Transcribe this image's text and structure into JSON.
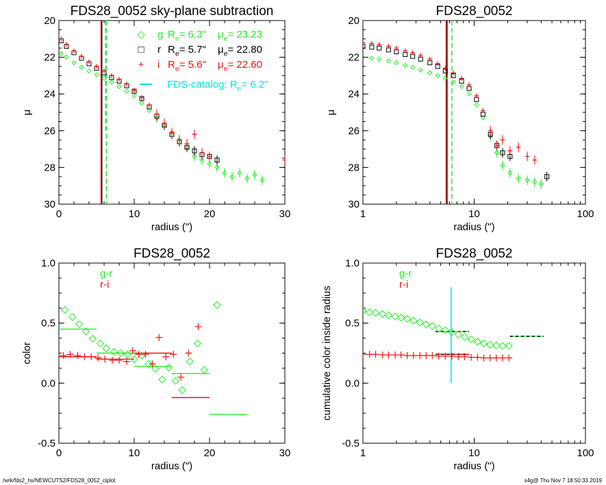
{
  "footer": {
    "path": "/wrk/fds2_hs/NEWCUTS2/FDS28_0052_ciplot",
    "stamp": "s4g@  Thu Nov  7 18:50:33 2019"
  },
  "colors": {
    "g": "#22ee22",
    "r": "#000000",
    "i": "#ee1111",
    "catalog": "#00e5e5"
  },
  "chart_data": [
    {
      "type": "scatter",
      "title": "FDS28_0052 sky-plane subtraction",
      "xlabel": "radius (\")",
      "ylabel": "μ",
      "xlim": [
        0,
        30
      ],
      "ylim": [
        30,
        20
      ],
      "xticks": [
        "0",
        "10",
        "20",
        "30"
      ],
      "yticks": [
        "20",
        "22",
        "24",
        "26",
        "28",
        "30"
      ],
      "legend": [
        {
          "symbol": "◇",
          "band": "g",
          "re_label": "R",
          "re_sub": "e",
          "re_value": "6.3\"",
          "mu_label": "μ",
          "mu_sub": "e",
          "mu_value": "23.23",
          "color": "#22ee22"
        },
        {
          "symbol": "□",
          "band": "r",
          "re_label": "R",
          "re_sub": "e",
          "re_value": "5.7\"",
          "mu_label": "μ",
          "mu_sub": "e",
          "mu_value": "22.80",
          "color": "#000000"
        },
        {
          "symbol": "+",
          "band": "i",
          "re_label": "R",
          "re_sub": "e",
          "re_value": "5.6\"",
          "mu_label": "μ",
          "mu_sub": "e",
          "mu_value": "22.60",
          "color": "#ee1111"
        }
      ],
      "catalog_label": "FDS-catalog: R",
      "catalog_sub": "e",
      "catalog_value": "6.2\"",
      "vlines": [
        {
          "x": 5.7,
          "color": "#000000",
          "style": "solid"
        },
        {
          "x": 5.6,
          "color": "#ee1111",
          "style": "solid"
        },
        {
          "x": 6.3,
          "color": "#22ee22",
          "style": "dashed"
        },
        {
          "x": 6.2,
          "color": "#00e5e5",
          "style": "dashed",
          "ymin": 26.0
        }
      ],
      "series": [
        {
          "name": "g",
          "marker": "diamond",
          "x": [
            0.3,
            1,
            2,
            3,
            4,
            5,
            6,
            7,
            8,
            9,
            10,
            11,
            12,
            13,
            14,
            15,
            16,
            17,
            18,
            19,
            20,
            21,
            22,
            23,
            24,
            25,
            26,
            27
          ],
          "y": [
            21.8,
            22.0,
            22.3,
            22.55,
            22.75,
            22.95,
            23.15,
            23.35,
            23.6,
            23.85,
            24.1,
            24.5,
            24.9,
            25.3,
            25.7,
            26.1,
            26.5,
            26.9,
            27.4,
            27.6,
            27.8,
            28.0,
            28.3,
            28.5,
            28.3,
            28.6,
            28.4,
            28.7
          ]
        },
        {
          "name": "r",
          "marker": "square",
          "x": [
            0.3,
            1,
            2,
            3,
            4,
            5,
            6,
            7,
            8,
            9,
            10,
            11,
            12,
            13,
            14,
            15,
            16,
            17,
            18,
            19,
            20,
            21
          ],
          "y": [
            21.1,
            21.4,
            21.75,
            22.05,
            22.35,
            22.6,
            22.85,
            23.1,
            23.3,
            23.55,
            23.85,
            24.25,
            24.7,
            25.2,
            25.7,
            26.2,
            26.6,
            26.9,
            27.1,
            27.3,
            27.4,
            27.6
          ]
        },
        {
          "name": "i",
          "marker": "plus",
          "x": [
            0.3,
            1,
            2,
            3,
            4,
            5,
            6,
            7,
            8,
            9,
            10,
            11,
            12,
            13,
            14,
            15,
            16,
            17,
            18,
            19,
            20,
            30
          ],
          "y": [
            21.0,
            21.3,
            21.65,
            21.95,
            22.25,
            22.5,
            22.75,
            23.0,
            23.2,
            23.45,
            23.8,
            24.2,
            24.6,
            25.1,
            25.6,
            26.1,
            26.5,
            26.7,
            26.2,
            27.2,
            27.4,
            27.6
          ]
        }
      ]
    },
    {
      "type": "scatter",
      "title": "FDS28_0052",
      "xlabel": "radius (\")",
      "ylabel": "μ",
      "xscale": "log",
      "xlim": [
        1,
        100
      ],
      "ylim": [
        30,
        20
      ],
      "xticks": [
        "1",
        "10",
        "100"
      ],
      "yticks": [
        "20",
        "22",
        "24",
        "26",
        "28",
        "30"
      ],
      "vlines": [
        {
          "x": 5.7,
          "color": "#000000",
          "style": "solid"
        },
        {
          "x": 5.6,
          "color": "#ee1111",
          "style": "solid"
        },
        {
          "x": 6.3,
          "color": "#22ee22",
          "style": "dashed"
        }
      ],
      "series": [
        {
          "name": "g",
          "marker": "diamond",
          "x": [
            1,
            1.2,
            1.4,
            1.7,
            2,
            2.4,
            2.8,
            3.3,
            4,
            4.7,
            5.5,
            6.5,
            7.7,
            9,
            10.5,
            12,
            14,
            16,
            18,
            21,
            25,
            30,
            35,
            40
          ],
          "y": [
            22.0,
            22.05,
            22.1,
            22.2,
            22.3,
            22.45,
            22.55,
            22.7,
            22.85,
            23.0,
            23.15,
            23.35,
            23.6,
            24.0,
            24.6,
            25.3,
            26.3,
            27.2,
            27.9,
            28.3,
            28.6,
            28.7,
            28.8,
            28.9
          ]
        },
        {
          "name": "r",
          "marker": "square",
          "x": [
            1,
            1.2,
            1.4,
            1.7,
            2,
            2.4,
            2.8,
            3.3,
            4,
            4.7,
            5.5,
            6.5,
            7.7,
            9,
            10.5,
            12,
            14,
            16,
            18,
            21,
            45
          ],
          "y": [
            21.4,
            21.45,
            21.5,
            21.6,
            21.7,
            21.85,
            21.95,
            22.1,
            22.3,
            22.5,
            22.75,
            23.0,
            23.3,
            23.7,
            24.3,
            25.1,
            26.2,
            26.8,
            27.2,
            27.4,
            28.5
          ]
        },
        {
          "name": "i",
          "marker": "plus",
          "x": [
            1,
            1.2,
            1.4,
            1.7,
            2,
            2.4,
            2.8,
            3.3,
            4,
            4.7,
            5.5,
            6.5,
            7.7,
            9,
            10.5,
            12,
            14,
            16,
            18,
            21,
            25,
            30,
            35
          ],
          "y": [
            21.2,
            21.25,
            21.3,
            21.4,
            21.5,
            21.65,
            21.75,
            21.9,
            22.1,
            22.35,
            22.6,
            22.85,
            23.15,
            23.5,
            24.1,
            24.9,
            26.0,
            26.8,
            26.5,
            27.1,
            26.9,
            27.4,
            27.6
          ]
        }
      ]
    },
    {
      "type": "scatter",
      "title": "FDS28_0052",
      "xlabel": "radius (\")",
      "ylabel": "color",
      "xlim": [
        0,
        30
      ],
      "ylim": [
        -0.5,
        1.0
      ],
      "xticks": [
        "0",
        "10",
        "20",
        "30"
      ],
      "yticks": [
        "-0.5",
        "0.0",
        "0.5",
        "1.0"
      ],
      "legend": [
        {
          "label": "g-r",
          "color": "#22ee22"
        },
        {
          "label": "r-i",
          "color": "#ee1111"
        }
      ],
      "series": [
        {
          "name": "g-r",
          "marker": "diamond",
          "x": [
            0.8,
            1.8,
            2.7,
            3.6,
            4.5,
            5.5,
            6.3,
            7.3,
            8.2,
            9.1,
            10.0,
            11.0,
            11.9,
            12.8,
            13.7,
            14.6,
            15.5,
            16.4,
            17.4,
            18.4,
            19.3,
            21.0
          ],
          "y": [
            0.61,
            0.55,
            0.49,
            0.43,
            0.37,
            0.33,
            0.29,
            0.26,
            0.25,
            0.24,
            0.2,
            0.23,
            0.16,
            0.12,
            0.03,
            0.13,
            0.02,
            -0.06,
            0.18,
            0.33,
            0.11,
            0.65
          ]
        },
        {
          "name": "r-i",
          "marker": "plus",
          "x": [
            0.6,
            1.5,
            2.5,
            3.4,
            4.3,
            5.2,
            6.1,
            7.1,
            8.0,
            9.0,
            9.8,
            10.6,
            11.5,
            12.4,
            13.3,
            14.2,
            15.2,
            16.2,
            17.2,
            18.5
          ],
          "y": [
            0.23,
            0.24,
            0.23,
            0.22,
            0.22,
            0.21,
            0.2,
            0.19,
            0.19,
            0.18,
            0.27,
            0.24,
            0.24,
            0.16,
            0.38,
            0.22,
            0.24,
            0.05,
            0.25,
            0.47
          ]
        }
      ],
      "segments": [
        {
          "series": "g-r",
          "x0": 0,
          "x1": 5,
          "y": 0.45
        },
        {
          "series": "g-r",
          "x0": 5,
          "x1": 10,
          "y": 0.25
        },
        {
          "series": "g-r",
          "x0": 10,
          "x1": 15,
          "y": 0.14
        },
        {
          "series": "g-r",
          "x0": 15,
          "x1": 20,
          "y": 0.08
        },
        {
          "series": "g-r",
          "x0": 20,
          "x1": 25,
          "y": -0.26
        },
        {
          "series": "r-i",
          "x0": 0,
          "x1": 5,
          "y": 0.22
        },
        {
          "series": "r-i",
          "x0": 5,
          "x1": 10,
          "y": 0.2
        },
        {
          "series": "r-i",
          "x0": 10,
          "x1": 15,
          "y": 0.25
        },
        {
          "series": "r-i",
          "x0": 15,
          "x1": 20,
          "y": -0.12
        }
      ]
    },
    {
      "type": "scatter",
      "title": "FDS28_0052",
      "xlabel": "radius (\")",
      "ylabel": "cumulative color inside radius",
      "xscale": "log",
      "xlim": [
        1,
        100
      ],
      "ylim": [
        -0.5,
        1.0
      ],
      "xticks": [
        "1",
        "10",
        "100"
      ],
      "yticks": [
        "-0.5",
        "0.0",
        "0.5",
        "1.0"
      ],
      "legend": [
        {
          "label": "g-r",
          "color": "#22ee22"
        },
        {
          "label": "r-i",
          "color": "#ee1111"
        }
      ],
      "vlines": [
        {
          "x": 6.2,
          "color": "#00e5e5",
          "style": "solid",
          "ymin": 0.0,
          "ymax": 0.8
        }
      ],
      "series": [
        {
          "name": "g-r",
          "marker": "diamond",
          "x": [
            1,
            1.15,
            1.3,
            1.5,
            1.7,
            1.95,
            2.2,
            2.5,
            2.85,
            3.25,
            3.7,
            4.2,
            4.8,
            5.5,
            6.3,
            7.2,
            8.2,
            9.4,
            10.7,
            12.2,
            13.9,
            15.8,
            18,
            20.5
          ],
          "y": [
            0.6,
            0.59,
            0.585,
            0.575,
            0.565,
            0.555,
            0.545,
            0.535,
            0.52,
            0.505,
            0.49,
            0.475,
            0.455,
            0.44,
            0.425,
            0.405,
            0.385,
            0.365,
            0.345,
            0.33,
            0.32,
            0.315,
            0.31,
            0.31
          ]
        },
        {
          "name": "r-i",
          "marker": "plus",
          "x": [
            1,
            1.15,
            1.3,
            1.5,
            1.7,
            1.95,
            2.2,
            2.5,
            2.85,
            3.25,
            3.7,
            4.2,
            4.8,
            5.5,
            6.3,
            7.2,
            8.2,
            9.4,
            10.7,
            12.2,
            13.9,
            15.8,
            18,
            20.5
          ],
          "y": [
            0.24,
            0.24,
            0.24,
            0.235,
            0.235,
            0.235,
            0.235,
            0.23,
            0.23,
            0.23,
            0.23,
            0.23,
            0.225,
            0.225,
            0.225,
            0.22,
            0.22,
            0.215,
            0.215,
            0.21,
            0.21,
            0.21,
            0.21,
            0.21
          ]
        }
      ],
      "segments": [
        {
          "series": "g-r",
          "x0": 4.5,
          "x1": 9.0,
          "y": 0.43,
          "dashed": true
        },
        {
          "series": "g-r",
          "x0": 21,
          "x1": 42,
          "y": 0.39,
          "dashed": true
        },
        {
          "series": "r-i",
          "x0": 4.5,
          "x1": 9.0,
          "y": 0.24,
          "dashed": true
        }
      ]
    }
  ]
}
